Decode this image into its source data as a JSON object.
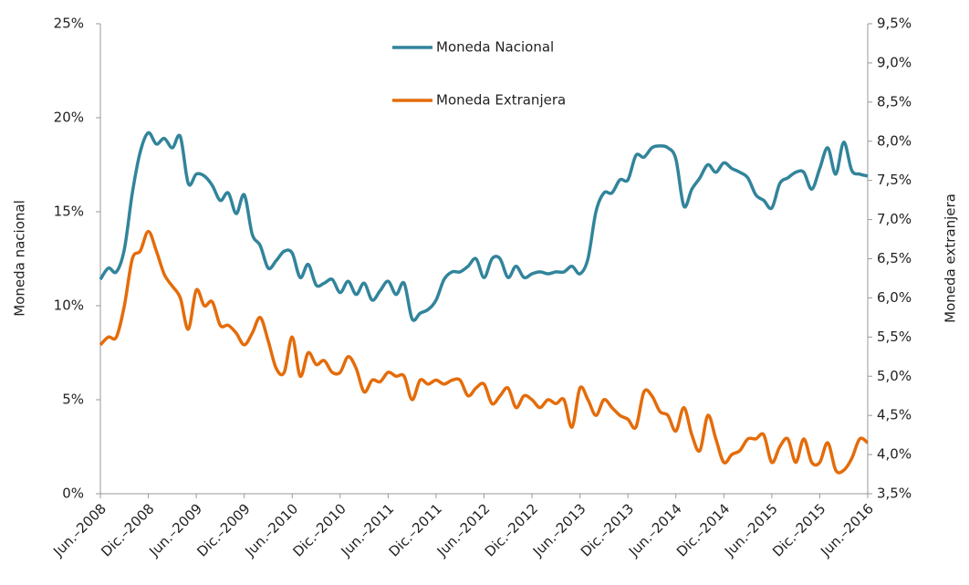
{
  "chart_data": {
    "type": "line",
    "y_label": "Moneda nacional",
    "y2_label": "Moneda extranjera",
    "categories": [
      "Jun.–2008",
      null,
      null,
      null,
      null,
      null,
      "Dic.–2008",
      null,
      null,
      null,
      null,
      null,
      "Jun.–2009",
      null,
      null,
      null,
      null,
      null,
      "Dic.–2009",
      null,
      null,
      null,
      null,
      null,
      "Jun.–2010",
      null,
      null,
      null,
      null,
      null,
      "Dic.–2010",
      null,
      null,
      null,
      null,
      null,
      "Jun.–2011",
      null,
      null,
      null,
      null,
      null,
      "Dic.–2011",
      null,
      null,
      null,
      null,
      null,
      "Jun.–2012",
      null,
      null,
      null,
      null,
      null,
      "Dic.–2012",
      null,
      null,
      null,
      null,
      null,
      "Jun.–2013",
      null,
      null,
      null,
      null,
      null,
      "Dic.–2013",
      null,
      null,
      null,
      null,
      null,
      "Jun.–2014",
      null,
      null,
      null,
      null,
      null,
      "Dic.–2014",
      null,
      null,
      null,
      null,
      null,
      "Jun.–2015",
      null,
      null,
      null,
      null,
      null,
      "Dic.–2015",
      null,
      null,
      null,
      null,
      null,
      "Jun.–2016"
    ],
    "series": [
      {
        "name": "Moneda Nacional",
        "color": "#31849b",
        "axis": "y",
        "values": [
          11.4,
          12,
          11.8,
          13,
          16,
          18.2,
          19.2,
          18.6,
          18.9,
          18.4,
          19,
          16.5,
          17,
          16.9,
          16.4,
          15.6,
          16,
          14.9,
          15.9,
          13.8,
          13.2,
          12,
          12.4,
          12.9,
          12.8,
          11.5,
          12.2,
          11.1,
          11.2,
          11.4,
          10.7,
          11.3,
          10.6,
          11.2,
          10.3,
          10.8,
          11.3,
          10.6,
          11.2,
          9.3,
          9.6,
          9.8,
          10.3,
          11.4,
          11.8,
          11.8,
          12.1,
          12.5,
          11.5,
          12.5,
          12.5,
          11.5,
          12.1,
          11.5,
          11.7,
          11.8,
          11.7,
          11.8,
          11.8,
          12.1,
          11.7,
          12.5,
          15,
          16,
          16,
          16.7,
          16.7,
          18,
          17.9,
          18.4,
          18.5,
          18.4,
          17.8,
          15.3,
          16.2,
          16.8,
          17.5,
          17.1,
          17.6,
          17.3,
          17.1,
          16.8,
          15.9,
          15.6,
          15.2,
          16.5,
          16.8,
          17.1,
          17.1,
          16.2,
          17.3,
          18.4,
          17,
          18.7,
          17.2,
          17,
          16.9
        ]
      },
      {
        "name": "Moneda Extranjera",
        "color": "#e46c0a",
        "axis": "y2",
        "values": [
          5.4,
          5.5,
          5.5,
          5.9,
          6.5,
          6.6,
          6.85,
          6.6,
          6.3,
          6.15,
          6.0,
          5.6,
          6.1,
          5.9,
          5.95,
          5.65,
          5.65,
          5.55,
          5.4,
          5.55,
          5.75,
          5.45,
          5.1,
          5.05,
          5.5,
          5.0,
          5.3,
          5.15,
          5.2,
          5.05,
          5.05,
          5.25,
          5.1,
          4.8,
          4.95,
          4.93,
          5.05,
          5.0,
          5.0,
          4.7,
          4.95,
          4.9,
          4.95,
          4.9,
          4.95,
          4.95,
          4.75,
          4.85,
          4.9,
          4.65,
          4.75,
          4.85,
          4.6,
          4.75,
          4.7,
          4.6,
          4.7,
          4.65,
          4.7,
          4.35,
          4.85,
          4.7,
          4.5,
          4.7,
          4.6,
          4.5,
          4.45,
          4.35,
          4.8,
          4.75,
          4.55,
          4.5,
          4.3,
          4.6,
          4.25,
          4.05,
          4.5,
          4.2,
          3.9,
          4.0,
          4.05,
          4.2,
          4.2,
          4.25,
          3.9,
          4.1,
          4.2,
          3.9,
          4.2,
          3.9,
          3.9,
          4.15,
          3.8,
          3.8,
          3.95,
          4.2,
          4.15
        ]
      }
    ],
    "ylim": [
      0,
      25
    ],
    "yticks": [
      {
        "value": 0,
        "label": "0%"
      },
      {
        "value": 5,
        "label": "5%"
      },
      {
        "value": 10,
        "label": "10%"
      },
      {
        "value": 15,
        "label": "15%"
      },
      {
        "value": 20,
        "label": "20%"
      },
      {
        "value": 25,
        "label": "25%"
      }
    ],
    "y2lim": [
      3.5,
      9.5
    ],
    "y2ticks": [
      {
        "value": 3.5,
        "label": "3,5%"
      },
      {
        "value": 4,
        "label": "4,0%"
      },
      {
        "value": 4.5,
        "label": "4,5%"
      },
      {
        "value": 5,
        "label": "5,0%"
      },
      {
        "value": 5.5,
        "label": "5,5%"
      },
      {
        "value": 6,
        "label": "6,0%"
      },
      {
        "value": 6.5,
        "label": "6,5%"
      },
      {
        "value": 7,
        "label": "7,0%"
      },
      {
        "value": 7.5,
        "label": "7,5%"
      },
      {
        "value": 8,
        "label": "8,0%"
      },
      {
        "value": 8.5,
        "label": "8,5%"
      },
      {
        "value": 9,
        "label": "9,0%"
      },
      {
        "value": 9.5,
        "label": "9,5%"
      }
    ],
    "legend": "top"
  }
}
